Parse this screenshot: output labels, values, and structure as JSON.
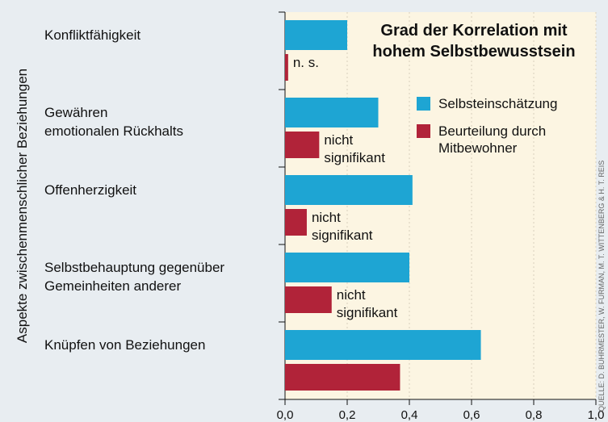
{
  "chart_data": {
    "type": "barh",
    "title": [
      "Grad der Korrelation mit",
      "hohem Selbstbewusstsein"
    ],
    "y_label": "Aspekte zwischenmenschlicher Beziehungen",
    "credit": "QUELLE: D. BUHRMESTER, W. FURMAN, M. T. WITTENBERG & H. T. REIS",
    "categories": [
      [
        "Konfliktfähigkeit"
      ],
      [
        "Gewähren",
        "emotionalen Rückhalts"
      ],
      [
        "Offenherzigkeit"
      ],
      [
        "Selbstbehauptung gegenüber",
        "Gemeinheiten anderer"
      ],
      [
        "Knüpfen von Beziehungen"
      ]
    ],
    "series": [
      {
        "name": [
          "Selbsteinschätzung"
        ],
        "color": "#1ea5d3",
        "values": [
          0.2,
          0.3,
          0.41,
          0.4,
          0.63
        ]
      },
      {
        "name": [
          "Beurteilung durch",
          "Mitbewohner"
        ],
        "color": "#b12339",
        "values": [
          0.01,
          0.11,
          0.07,
          0.15,
          0.37
        ],
        "notes": [
          [
            "n. s."
          ],
          [
            "nicht",
            "signifikant"
          ],
          [
            "nicht",
            "signifikant"
          ],
          [
            "nicht",
            "signifikant"
          ],
          null
        ]
      }
    ],
    "xlim": [
      0,
      1
    ],
    "xticks": [
      {
        "value": 0,
        "label": "0,0"
      },
      {
        "value": 0.2,
        "label": "0,2"
      },
      {
        "value": 0.4,
        "label": "0,4"
      },
      {
        "value": 0.6,
        "label": "0,6"
      },
      {
        "value": 0.8,
        "label": "0,8"
      },
      {
        "value": 1,
        "label": "1,0"
      }
    ],
    "grid": true
  }
}
